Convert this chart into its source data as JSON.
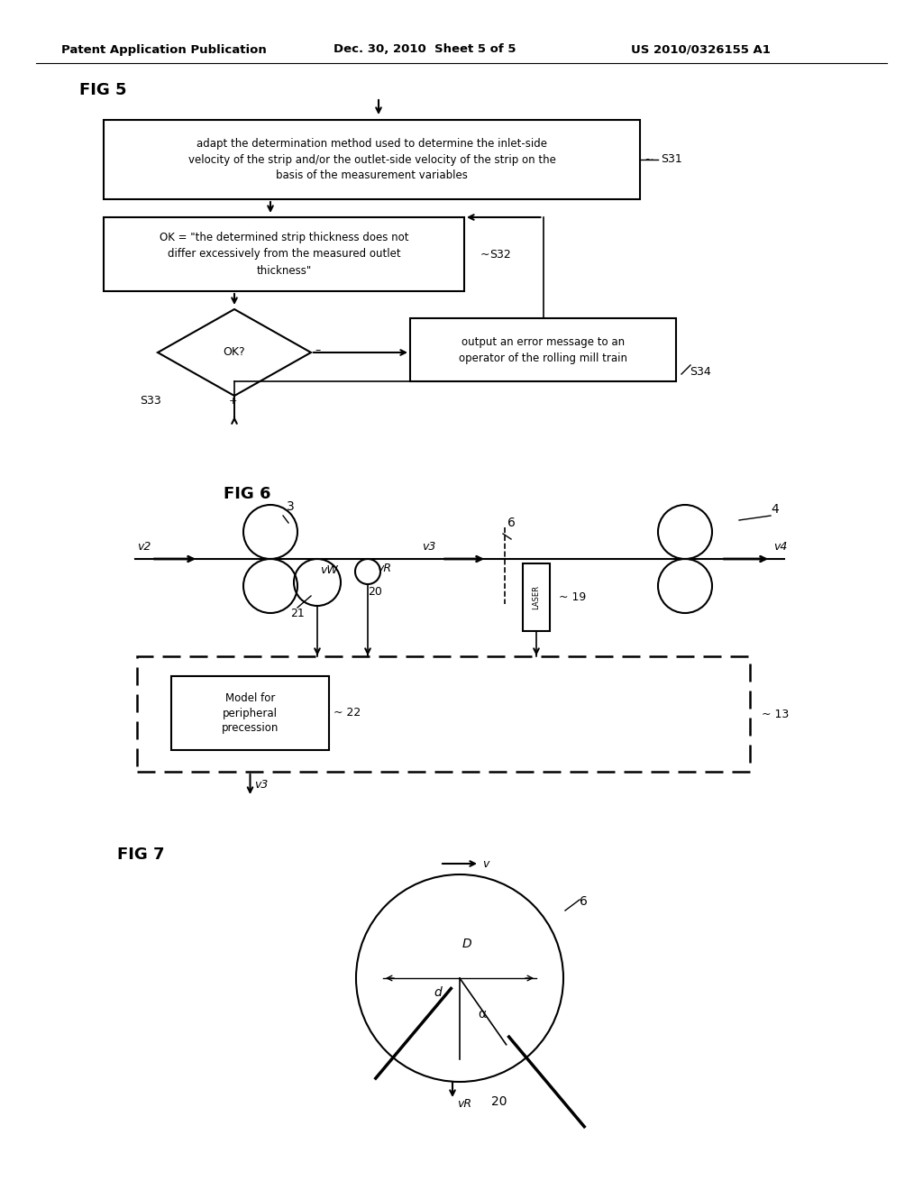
{
  "bg_color": "#ffffff",
  "header_left": "Patent Application Publication",
  "header_mid": "Dec. 30, 2010  Sheet 5 of 5",
  "header_right": "US 2010/0326155 A1",
  "fig5_label": "FIG 5",
  "fig5_box1_text": "adapt the determination method used to determine the inlet-side\nvelocity of the strip and/or the outlet-side velocity of the strip on the\nbasis of the measurement variables",
  "fig5_box1_ref": "S31",
  "fig5_box2_text": "OK = \"the determined strip thickness does not\ndiffer excessively from the measured outlet\nthickness\"",
  "fig5_box2_ref": "S32",
  "fig5_diamond_text": "OK?",
  "fig5_diamond_ref": "S33",
  "fig5_box3_text": "output an error message to an\noperator of the rolling mill train",
  "fig5_box3_ref": "S34",
  "fig6_label": "FIG 6",
  "fig7_label": "FIG 7"
}
